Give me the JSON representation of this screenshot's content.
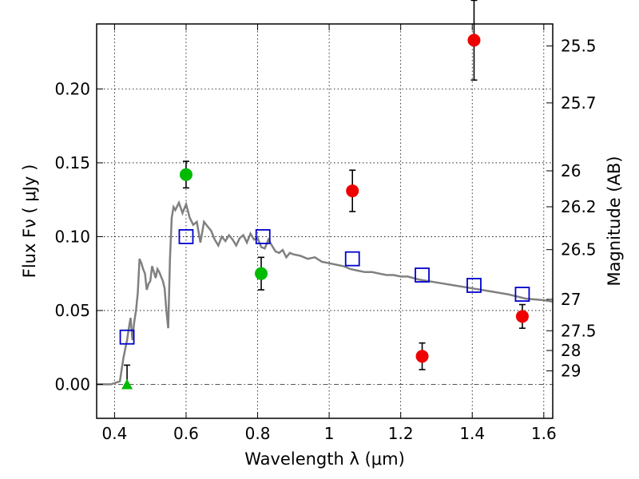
{
  "chart_data": {
    "type": "scatter",
    "xlabel": "Wavelength  λ (μm)",
    "ylabel": "Flux  Fν  ( μJy )",
    "y2label": "Magnitude (AB)",
    "xlim": [
      0.35,
      1.625
    ],
    "ylim": [
      -0.023,
      0.244
    ],
    "x_ticks": [
      0.4,
      0.6,
      0.8,
      1.0,
      1.2,
      1.4,
      1.6
    ],
    "x_tick_labels": [
      "0.4",
      "0.6",
      "0.8",
      "1",
      "1.2",
      "1.4",
      "1.6"
    ],
    "y_ticks": [
      0.0,
      0.05,
      0.1,
      0.15,
      0.2
    ],
    "y_tick_labels": [
      "0.00",
      "0.05",
      "0.10",
      "0.15",
      "0.20"
    ],
    "mag_ticks": [
      {
        "label": "25.5",
        "value": 25.5
      },
      {
        "label": "25.7",
        "value": 25.7
      },
      {
        "label": "26",
        "value": 26.0
      },
      {
        "label": "26.2",
        "value": 26.2
      },
      {
        "label": "26.5",
        "value": 26.5
      },
      {
        "label": "27",
        "value": 27.0
      },
      {
        "label": "27.5",
        "value": 27.5
      },
      {
        "label": "28",
        "value": 28.0
      },
      {
        "label": "29",
        "value": 29.0
      }
    ],
    "grid": true,
    "colors": {
      "model": "#808080",
      "model_points": "#0000cc",
      "green": "#00bb00",
      "red": "#ee0000",
      "errorbar": "#000000",
      "zero_line": "#555555"
    },
    "series": [
      {
        "kind": "line",
        "x": [
          0.35,
          0.39,
          0.415,
          0.42,
          0.425,
          0.43,
          0.435,
          0.44,
          0.445,
          0.45,
          0.455,
          0.46,
          0.465,
          0.47,
          0.475,
          0.48,
          0.485,
          0.49,
          0.495,
          0.5,
          0.505,
          0.51,
          0.515,
          0.52,
          0.525,
          0.53,
          0.535,
          0.54,
          0.545,
          0.55,
          0.555,
          0.56,
          0.565,
          0.57,
          0.58,
          0.59,
          0.6,
          0.61,
          0.62,
          0.63,
          0.64,
          0.65,
          0.66,
          0.67,
          0.68,
          0.69,
          0.7,
          0.71,
          0.72,
          0.73,
          0.74,
          0.75,
          0.76,
          0.77,
          0.78,
          0.79,
          0.8,
          0.81,
          0.82,
          0.83,
          0.84,
          0.85,
          0.86,
          0.87,
          0.88,
          0.89,
          0.9,
          0.92,
          0.94,
          0.96,
          0.98,
          1.0,
          1.02,
          1.04,
          1.06,
          1.08,
          1.1,
          1.12,
          1.14,
          1.16,
          1.18,
          1.2,
          1.22,
          1.25,
          1.3,
          1.35,
          1.4,
          1.45,
          1.5,
          1.55,
          1.6,
          1.625
        ],
        "y": [
          0.0,
          0.0,
          0.002,
          0.01,
          0.018,
          0.024,
          0.03,
          0.038,
          0.045,
          0.03,
          0.042,
          0.05,
          0.062,
          0.085,
          0.082,
          0.078,
          0.075,
          0.064,
          0.068,
          0.07,
          0.08,
          0.076,
          0.072,
          0.078,
          0.076,
          0.073,
          0.07,
          0.065,
          0.05,
          0.038,
          0.085,
          0.113,
          0.12,
          0.118,
          0.123,
          0.116,
          0.122,
          0.113,
          0.108,
          0.11,
          0.096,
          0.11,
          0.107,
          0.104,
          0.098,
          0.094,
          0.1,
          0.097,
          0.101,
          0.098,
          0.094,
          0.099,
          0.101,
          0.096,
          0.102,
          0.098,
          0.099,
          0.093,
          0.092,
          0.098,
          0.094,
          0.09,
          0.089,
          0.091,
          0.086,
          0.089,
          0.088,
          0.087,
          0.085,
          0.086,
          0.083,
          0.082,
          0.081,
          0.08,
          0.078,
          0.077,
          0.076,
          0.076,
          0.075,
          0.074,
          0.074,
          0.073,
          0.073,
          0.071,
          0.069,
          0.067,
          0.065,
          0.063,
          0.061,
          0.058,
          0.057,
          0.056
        ]
      },
      {
        "kind": "model-squares",
        "x": [
          0.435,
          0.6,
          0.815,
          1.065,
          1.26,
          1.405,
          1.54
        ],
        "y": [
          0.032,
          0.1,
          0.1,
          0.085,
          0.074,
          0.067,
          0.061
        ]
      },
      {
        "kind": "detections-green",
        "x": [
          0.6,
          0.81
        ],
        "y": [
          0.142,
          0.075
        ],
        "err": [
          0.009,
          0.011
        ]
      },
      {
        "kind": "detections-red",
        "x": [
          1.065,
          1.26,
          1.405,
          1.54
        ],
        "y": [
          0.131,
          0.019,
          0.233,
          0.046
        ],
        "err": [
          0.014,
          0.009,
          0.027,
          0.008
        ]
      },
      {
        "kind": "upper-limit",
        "x": [
          0.435
        ],
        "y": [
          0.0
        ],
        "err": [
          0.013
        ]
      }
    ]
  }
}
